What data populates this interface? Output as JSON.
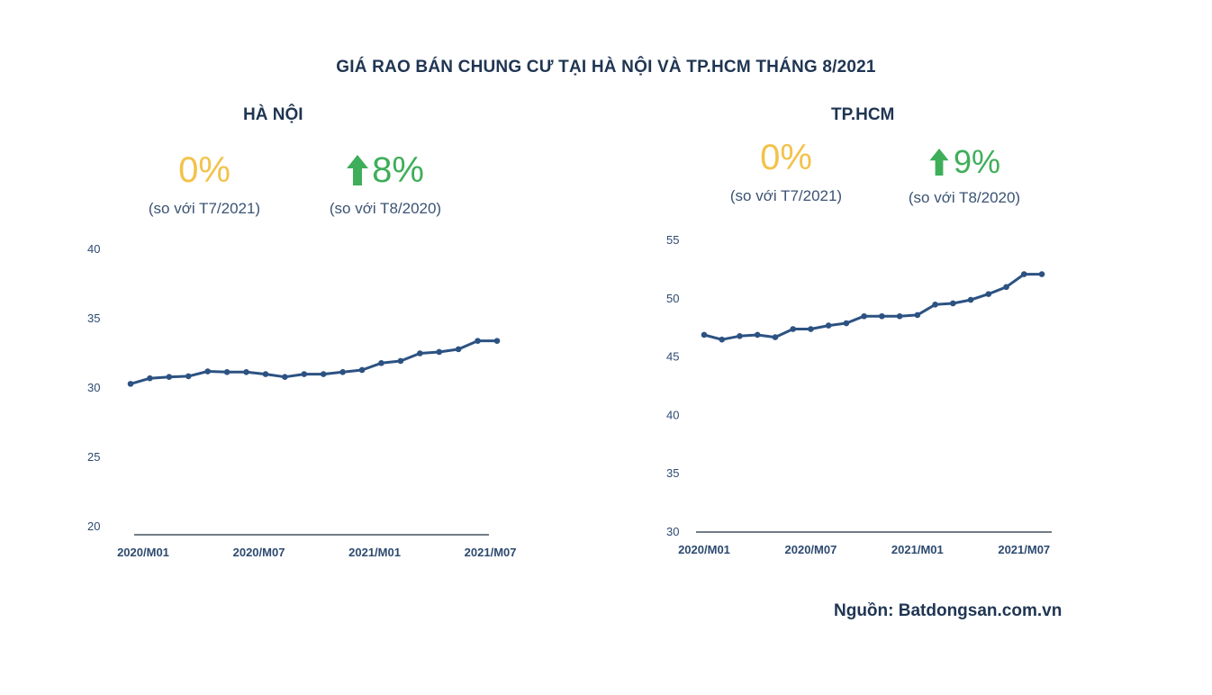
{
  "title": "GIÁ RAO BÁN CHUNG CƯ TẠI HÀ NỘI VÀ TP.HCM THÁNG 8/2021",
  "source": "Nguồn: Batdongsan.com.vn",
  "colors": {
    "line": "#2c5282",
    "neutral": "#f3c24a",
    "up": "#3fae5a",
    "text": "#1f3552"
  },
  "panels": {
    "hanoi": {
      "title": "HÀ NỘI",
      "stat_mom": {
        "value": "0%",
        "note": "(so với T7/2021)",
        "icon": "none"
      },
      "stat_yoy": {
        "value": "8%",
        "note": "(so với T8/2020)",
        "icon": "arrow-up-icon"
      }
    },
    "hcm": {
      "title": "TP.HCM",
      "stat_mom": {
        "value": "0%",
        "note": "(so với T7/2021)",
        "icon": "none"
      },
      "stat_yoy": {
        "value": "9%",
        "note": "(so với T8/2020)",
        "icon": "arrow-up-icon"
      }
    }
  },
  "chart_data": [
    {
      "type": "line",
      "name": "HÀ NỘI",
      "categories": [
        "2020/M01",
        "2020/M02",
        "2020/M03",
        "2020/M04",
        "2020/M05",
        "2020/M06",
        "2020/M07",
        "2020/M08",
        "2020/M09",
        "2020/M10",
        "2020/M11",
        "2020/M12",
        "2021/M01",
        "2021/M02",
        "2021/M03",
        "2021/M04",
        "2021/M05",
        "2021/M06",
        "2021/M07",
        "2021/M08"
      ],
      "values": [
        30.3,
        30.7,
        30.8,
        30.85,
        31.2,
        31.15,
        31.15,
        31.0,
        30.8,
        31.0,
        31.0,
        31.15,
        31.3,
        31.8,
        31.95,
        32.5,
        32.6,
        32.8,
        33.4,
        33.4
      ],
      "xticks": [
        "2020/M01",
        "2020/M07",
        "2021/M01",
        "2021/M07"
      ],
      "yticks": [
        20,
        25,
        30,
        35,
        40
      ],
      "ylim": [
        20,
        40
      ],
      "grid": false
    },
    {
      "type": "line",
      "name": "TP.HCM",
      "categories": [
        "2020/M01",
        "2020/M02",
        "2020/M03",
        "2020/M04",
        "2020/M05",
        "2020/M06",
        "2020/M07",
        "2020/M08",
        "2020/M09",
        "2020/M10",
        "2020/M11",
        "2020/M12",
        "2021/M01",
        "2021/M02",
        "2021/M03",
        "2021/M04",
        "2021/M05",
        "2021/M06",
        "2021/M07",
        "2021/M08"
      ],
      "values": [
        46.9,
        46.5,
        46.8,
        46.9,
        46.7,
        47.4,
        47.4,
        47.7,
        47.9,
        48.5,
        48.5,
        48.5,
        48.6,
        49.5,
        49.6,
        49.9,
        50.4,
        51.0,
        52.1,
        52.1
      ],
      "xticks": [
        "2020/M01",
        "2020/M07",
        "2021/M01",
        "2021/M07"
      ],
      "yticks": [
        30,
        35,
        40,
        45,
        50,
        55
      ],
      "ylim": [
        30,
        55
      ],
      "grid": false
    }
  ]
}
